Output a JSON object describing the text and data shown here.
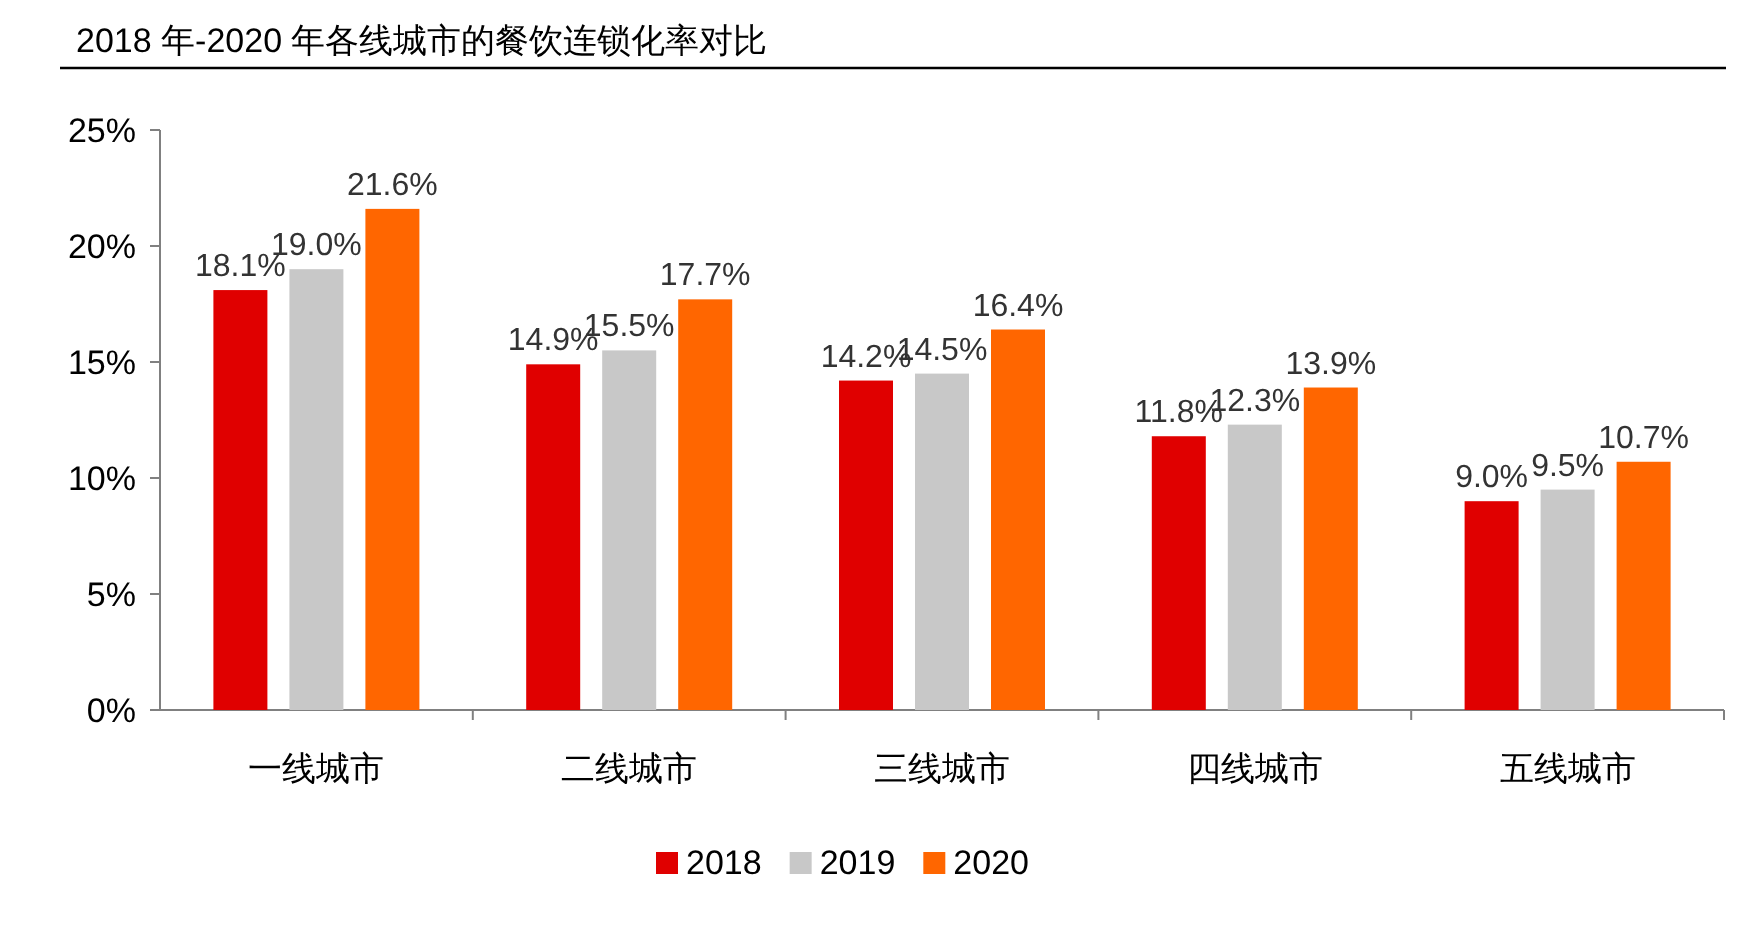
{
  "chart_data": {
    "type": "bar",
    "title": "2018 年-2020 年各线城市的餐饮连锁化率对比",
    "categories": [
      "一线城市",
      "二线城市",
      "三线城市",
      "四线城市",
      "五线城市"
    ],
    "series": [
      {
        "name": "2018",
        "color": "#e00000",
        "values": [
          18.1,
          14.9,
          14.2,
          11.8,
          9.0
        ],
        "value_labels": [
          "18.1%",
          "14.9%",
          "14.2%",
          "11.8%",
          "9.0%"
        ]
      },
      {
        "name": "2019",
        "color": "#c8c8c8",
        "values": [
          19.0,
          15.5,
          14.5,
          12.3,
          9.5
        ],
        "value_labels": [
          "19.0%",
          "15.5%",
          "14.5%",
          "12.3%",
          "9.5%"
        ]
      },
      {
        "name": "2020",
        "color": "#ff6600",
        "values": [
          21.6,
          17.7,
          16.4,
          13.9,
          10.7
        ],
        "value_labels": [
          "21.6%",
          "17.7%",
          "16.4%",
          "13.9%",
          "10.7%"
        ]
      }
    ],
    "ylim": [
      0,
      25
    ],
    "yticks": [
      {
        "value": 0,
        "label": "0%"
      },
      {
        "value": 5,
        "label": "5%"
      },
      {
        "value": 10,
        "label": "10%"
      },
      {
        "value": 15,
        "label": "15%"
      },
      {
        "value": 20,
        "label": "20%"
      },
      {
        "value": 25,
        "label": "25%"
      }
    ],
    "grid": false,
    "legend": "bottom"
  }
}
